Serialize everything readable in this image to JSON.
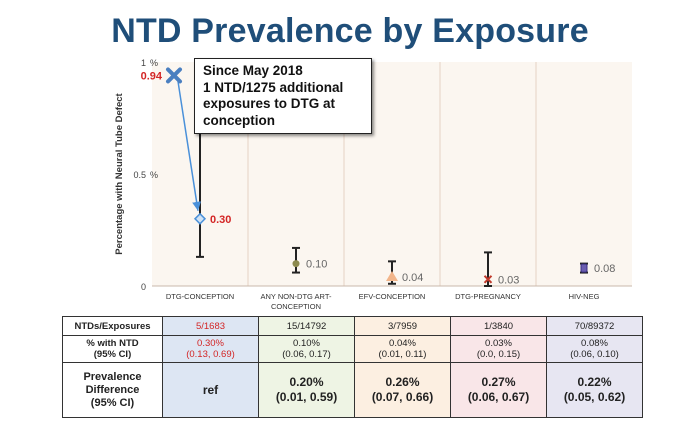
{
  "title": "NTD Prevalence by Exposure",
  "chart_data": {
    "type": "scatter",
    "ylabel": "Percentage with Neural Tube Defect",
    "ylim": [
      0,
      1
    ],
    "y_ticks": [
      {
        "value": 0,
        "label": "0"
      },
      {
        "value": 0.5,
        "label": "0.5"
      },
      {
        "value": 1,
        "label": "1"
      }
    ],
    "y_unit_label": "%",
    "categories": [
      "DTG-CONCEPTION",
      "ANY NON-DTG ART-CONCEPTION",
      "EFV-CONCEPTION",
      "DTG-PREGNANCY",
      "HIV-NEG"
    ],
    "category_lines": [
      [
        "DTG-CONCEPTION"
      ],
      [
        "ANY NON-DTG ART-",
        "CONCEPTION"
      ],
      [
        "EFV-CONCEPTION"
      ],
      [
        "DTG-PREGNANCY"
      ],
      [
        "HIV-NEG"
      ]
    ],
    "series": [
      {
        "name": "Prevalence",
        "values": [
          0.3,
          0.1,
          0.04,
          0.03,
          0.08
        ],
        "labels": [
          "0.30",
          "0.10",
          "0.04",
          "0.03",
          "0.08"
        ],
        "ci_low": [
          0.13,
          0.06,
          0.01,
          0.0,
          0.06
        ],
        "ci_high": [
          0.69,
          0.17,
          0.11,
          0.15,
          0.1
        ],
        "colors": [
          "#4a90d9",
          "#8d8b4f",
          "#f2b58a",
          "#c0392b",
          "#6a5db0"
        ],
        "label_colors": [
          "#d32525",
          "#666666",
          "#666666",
          "#666666",
          "#666666"
        ]
      }
    ],
    "previous_point": {
      "category": "DTG-CONCEPTION",
      "value": 0.94,
      "label": "0.94",
      "color": "#d32525"
    },
    "annotation": {
      "lines": [
        "Since May 2018",
        "1 NTD/1275 additional",
        "exposures to DTG at",
        "conception"
      ]
    }
  },
  "table": {
    "rows": [
      {
        "header": [
          "NTDs/Exposures"
        ],
        "cells": [
          [
            "5/1683"
          ],
          [
            "15/14792"
          ],
          [
            "3/7959"
          ],
          [
            "1/3840"
          ],
          [
            "70/89372"
          ]
        ]
      },
      {
        "header": [
          "% with NTD",
          "(95% CI)"
        ],
        "cells": [
          [
            "0.30%",
            "(0.13, 0.69)"
          ],
          [
            "0.10%",
            "(0.06, 0.17)"
          ],
          [
            "0.04%",
            "(0.01, 0.11)"
          ],
          [
            "0.03%",
            "(0.0, 0.15)"
          ],
          [
            "0.08%",
            "(0.06, 0.10)"
          ]
        ]
      },
      {
        "header": [
          "Prevalence",
          "Difference",
          "(95% CI)"
        ],
        "cells": [
          [
            "ref"
          ],
          [
            "0.20%",
            "(0.01, 0.59)"
          ],
          [
            "0.26%",
            "(0.07, 0.66)"
          ],
          [
            "0.27%",
            "(0.06, 0.67)"
          ],
          [
            "0.22%",
            "(0.05, 0.62)"
          ]
        ]
      }
    ]
  }
}
